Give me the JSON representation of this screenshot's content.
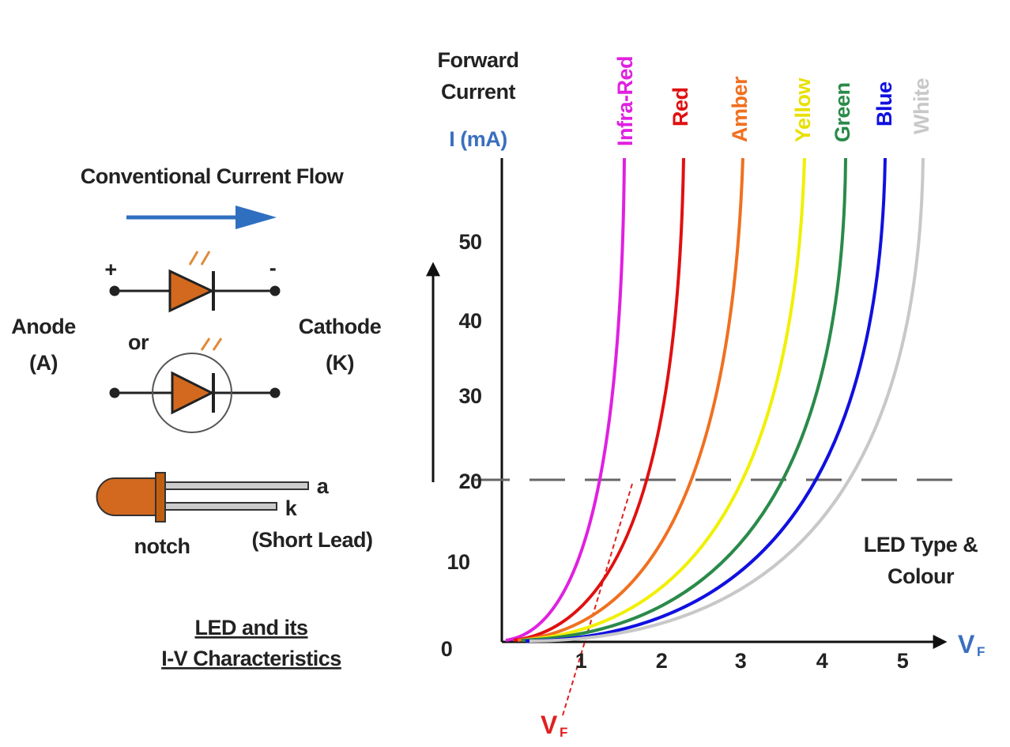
{
  "left_panel": {
    "flow_label": "Conventional Current Flow",
    "plus": "+",
    "minus": "-",
    "anode": [
      "Anode",
      "(A)"
    ],
    "or": "or",
    "cathode": [
      "Cathode",
      "(K)"
    ],
    "lead_a": "a",
    "lead_k": "k",
    "short_lead": "(Short Lead)",
    "notch": "notch",
    "caption": [
      "LED and its",
      "I-V Characteristics"
    ]
  },
  "graph": {
    "y_title": [
      "Forward",
      "Current"
    ],
    "y_unit": "I (mA)",
    "y_ticks": [
      "0",
      "10",
      "20",
      "30",
      "40",
      "50"
    ],
    "x_ticks": [
      "1",
      "2",
      "3",
      "4",
      "5"
    ],
    "x_label": "V",
    "x_label_sub": "F",
    "threshold_label": "V",
    "threshold_label_sub": "F",
    "curves": [
      "Infra-Red",
      "Red",
      "Amber",
      "Yellow",
      "Green",
      "Blue",
      "White"
    ],
    "type_label": [
      "LED Type &",
      "Colour"
    ]
  }
}
